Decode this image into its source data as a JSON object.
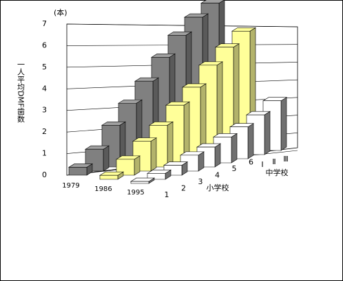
{
  "chart_data": {
    "type": "bar3d",
    "y_unit": "(本)",
    "y_label": "一人平均DMF歯数",
    "categories": [
      "1",
      "2",
      "3",
      "4",
      "5",
      "6",
      "Ⅰ",
      "Ⅱ",
      "Ⅲ"
    ],
    "group_labels": [
      "小学校",
      "中学校"
    ],
    "series": [
      {
        "name": "1979",
        "color": "#808080",
        "values": [
          0.4,
          1.1,
          2.1,
          3.0,
          3.9,
          4.9,
          5.8,
          6.5,
          7.0
        ]
      },
      {
        "name": "1986",
        "color": "#ffff99",
        "values": [
          0.2,
          0.8,
          1.5,
          2.1,
          2.9,
          3.6,
          4.5,
          5.2,
          5.8
        ]
      },
      {
        "name": "1995",
        "color": "#ffffff",
        "values": [
          0.1,
          0.3,
          0.5,
          0.8,
          1.0,
          1.3,
          1.6,
          2.0,
          2.5
        ]
      }
    ],
    "ylim": [
      0,
      7
    ],
    "yticks": [
      0,
      1,
      2,
      3,
      4,
      5,
      6,
      7
    ],
    "grid": true
  }
}
